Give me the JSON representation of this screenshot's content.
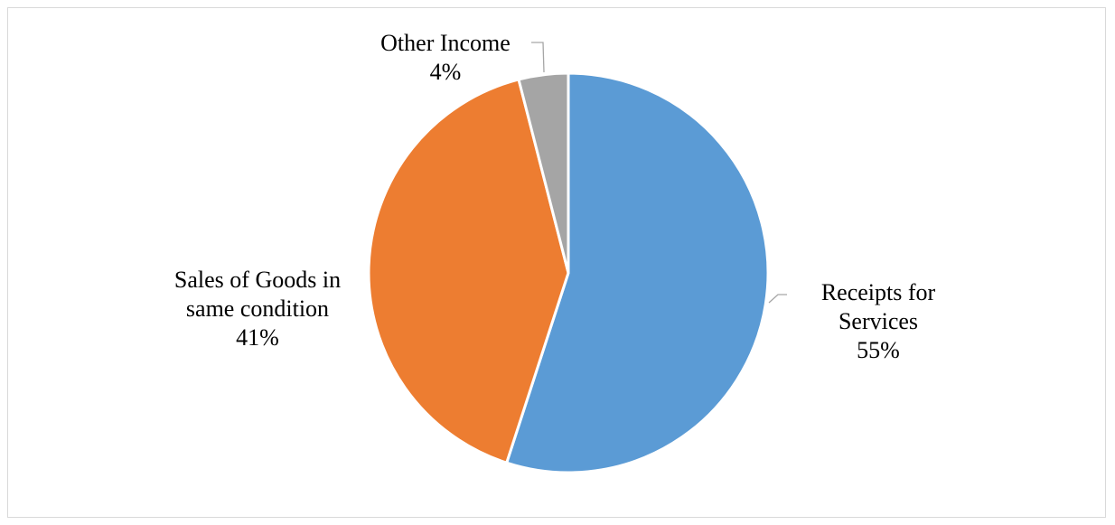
{
  "chart_data": {
    "type": "pie",
    "title": "",
    "start_angle_deg": 0,
    "direction": "clockwise",
    "slices": [
      {
        "name": "Receipts for Services",
        "label_lines": [
          "Receipts for",
          "Services"
        ],
        "value": 55,
        "percent_label": "55%",
        "color": "#5B9BD5"
      },
      {
        "name": "Sales of Goods in same condition",
        "label_lines": [
          "Sales of Goods in",
          "same condition"
        ],
        "value": 41,
        "percent_label": "41%",
        "color": "#ED7D31"
      },
      {
        "name": "Other Income",
        "label_lines": [
          "Other Income"
        ],
        "value": 4,
        "percent_label": "4%",
        "color": "#A5A5A5"
      }
    ],
    "legend": "none",
    "data_labels": "outside with leader lines"
  }
}
